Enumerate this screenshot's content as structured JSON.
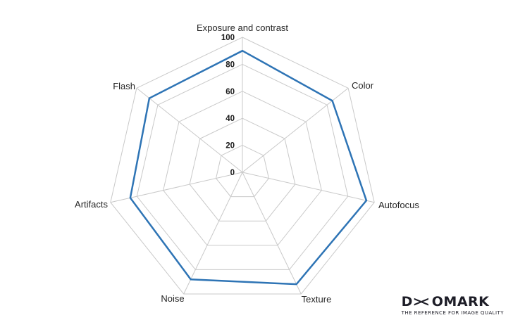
{
  "chart_data": {
    "type": "radar",
    "title": "",
    "categories": [
      "Exposure and contrast",
      "Color",
      "Autofocus",
      "Texture",
      "Noise",
      "Artifacts",
      "Flash"
    ],
    "values": [
      90,
      85,
      94,
      92,
      88,
      85,
      88
    ],
    "max": 100,
    "ticks": [
      0,
      20,
      40,
      60,
      80,
      100
    ],
    "grid": true,
    "legend": "none",
    "grid_color": "#c9c9c9",
    "line_color": "#2e74b5",
    "tick_label_color": "#1a1a1a",
    "category_label_color": "#262626"
  },
  "logo": {
    "d": "D",
    "x": "><",
    "mark": "OMARK",
    "tagline": "THE REFERENCE FOR IMAGE QUALITY"
  }
}
